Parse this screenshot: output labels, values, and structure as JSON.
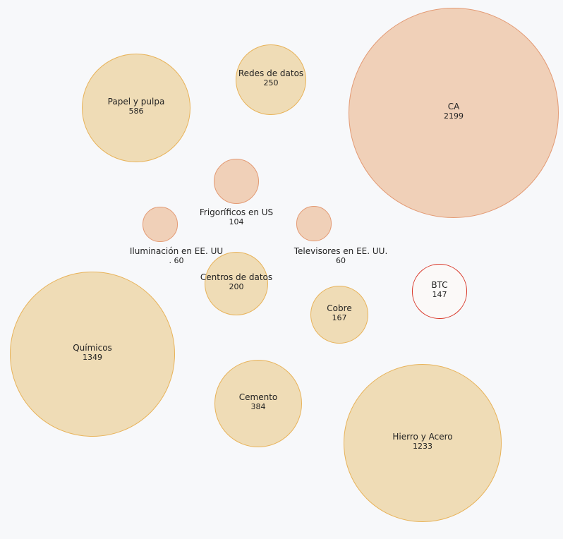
{
  "chart_data": {
    "type": "bubble",
    "series": [
      {
        "name": "CA",
        "value": 2199,
        "fill": "#f0d0b8",
        "stroke": "#e39a74"
      },
      {
        "name": "Químicos",
        "value": 1349,
        "fill": "#efdcb6",
        "stroke": "#e8b35a"
      },
      {
        "name": "Hierro y Acero",
        "value": 1233,
        "fill": "#efdcb6",
        "stroke": "#e8b35a"
      },
      {
        "name": "Papel y pulpa",
        "value": 586,
        "fill": "#efdcb6",
        "stroke": "#e8b35a"
      },
      {
        "name": "Cemento",
        "value": 384,
        "fill": "#efdcb6",
        "stroke": "#e8b35a"
      },
      {
        "name": "Redes de datos",
        "value": 250,
        "fill": "#efdcb6",
        "stroke": "#e8b35a"
      },
      {
        "name": "Centros de datos",
        "value": 200,
        "fill": "#efdcb6",
        "stroke": "#e8b35a"
      },
      {
        "name": "Cobre",
        "value": 167,
        "fill": "#efdcb6",
        "stroke": "#e8b35a"
      },
      {
        "name": "BTC",
        "value": 147,
        "fill": "#fbf9f8",
        "stroke": "#d9392b"
      },
      {
        "name": "Frigoríficos en US",
        "value": 104,
        "fill": "#f0d0b8",
        "stroke": "#e39a74"
      },
      {
        "name": "Iluminación en EE. UU",
        "value": 60,
        "value_label": ". 60",
        "fill": "#f0d0b8",
        "stroke": "#e39a74"
      },
      {
        "name": "Televisores en EE. UU.",
        "value": 60,
        "fill": "#f0d0b8",
        "stroke": "#e39a74"
      }
    ]
  }
}
